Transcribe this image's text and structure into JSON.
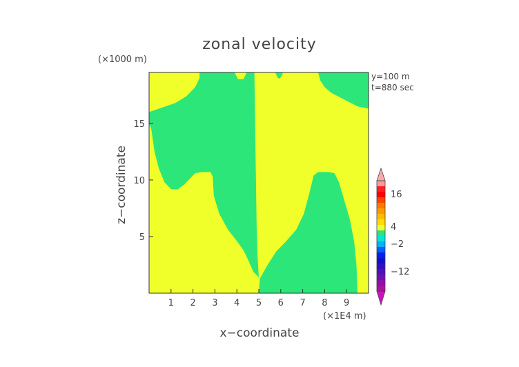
{
  "chart_data": {
    "type": "heatmap",
    "title": "zonal velocity",
    "xlabel": "x−coordinate",
    "ylabel": "z−coordinate",
    "x_unit": "(×1E4 m)",
    "y_unit": "(×1000 m)",
    "annotations": [
      "y=100 m",
      "t=880 sec"
    ],
    "xlim": [
      0,
      10
    ],
    "ylim": [
      0,
      19.5
    ],
    "x_ticks": [
      1,
      2,
      3,
      4,
      5,
      6,
      7,
      8,
      9
    ],
    "y_ticks": [
      5,
      10,
      15
    ],
    "colors": {
      "positive": "#f0ff2a",
      "negative": "#2ce67a"
    },
    "regions": [
      {
        "name": "left-upper-negative",
        "sign": "negative",
        "polygon": [
          [
            0.0,
            16.0
          ],
          [
            0.6,
            16.4
          ],
          [
            1.2,
            16.8
          ],
          [
            1.7,
            17.4
          ],
          [
            2.1,
            18.2
          ],
          [
            2.3,
            19.0
          ],
          [
            2.3,
            19.5
          ],
          [
            3.9,
            19.5
          ],
          [
            4.05,
            18.9
          ],
          [
            4.3,
            18.9
          ],
          [
            4.45,
            19.5
          ],
          [
            4.8,
            19.5
          ],
          [
            4.9,
            6.0
          ],
          [
            4.95,
            3.0
          ],
          [
            5.0,
            1.4
          ],
          [
            4.75,
            1.9
          ],
          [
            4.5,
            3.0
          ],
          [
            4.3,
            3.8
          ],
          [
            4.0,
            4.6
          ],
          [
            3.6,
            5.6
          ],
          [
            3.2,
            7.0
          ],
          [
            2.95,
            8.6
          ],
          [
            2.9,
            10.3
          ],
          [
            2.8,
            10.7
          ],
          [
            2.4,
            10.7
          ],
          [
            2.1,
            10.6
          ],
          [
            1.9,
            10.2
          ],
          [
            1.6,
            9.6
          ],
          [
            1.3,
            9.15
          ],
          [
            1.0,
            9.2
          ],
          [
            0.7,
            9.8
          ],
          [
            0.45,
            11.0
          ],
          [
            0.25,
            12.5
          ],
          [
            0.1,
            14.5
          ],
          [
            0.0,
            15.0
          ]
        ]
      },
      {
        "name": "right-upper-negative",
        "sign": "negative",
        "polygon": [
          [
            7.7,
            19.5
          ],
          [
            7.8,
            18.8
          ],
          [
            8.0,
            18.2
          ],
          [
            8.3,
            17.7
          ],
          [
            8.7,
            17.3
          ],
          [
            9.1,
            16.9
          ],
          [
            9.5,
            16.5
          ],
          [
            10.0,
            16.3
          ],
          [
            10.0,
            19.5
          ]
        ]
      },
      {
        "name": "right-lower-negative",
        "sign": "negative",
        "polygon": [
          [
            5.05,
            1.3
          ],
          [
            5.4,
            2.5
          ],
          [
            5.8,
            3.7
          ],
          [
            6.2,
            4.5
          ],
          [
            6.7,
            5.6
          ],
          [
            7.05,
            7.0
          ],
          [
            7.3,
            8.8
          ],
          [
            7.5,
            10.4
          ],
          [
            7.7,
            10.7
          ],
          [
            8.2,
            10.7
          ],
          [
            8.45,
            10.6
          ],
          [
            8.65,
            9.8
          ],
          [
            8.85,
            8.5
          ],
          [
            9.15,
            6.5
          ],
          [
            9.35,
            4.5
          ],
          [
            9.45,
            2.5
          ],
          [
            9.5,
            0.0
          ],
          [
            5.0,
            0.0
          ]
        ]
      },
      {
        "name": "notch-near-6",
        "sign": "negative",
        "polygon": [
          [
            5.75,
            19.5
          ],
          [
            5.85,
            19.05
          ],
          [
            5.95,
            18.95
          ],
          [
            6.05,
            19.2
          ],
          [
            6.1,
            19.5
          ]
        ]
      }
    ],
    "colorbar": {
      "labels": [
        16,
        4,
        -2,
        -12
      ],
      "bands": [
        "#ff9999",
        "#ff2020",
        "#ff0000",
        "#ff4400",
        "#ff7a00",
        "#ff9900",
        "#ffbb00",
        "#ffdd00",
        "#f0ff2a",
        "#2ce67a",
        "#00e8d0",
        "#00b0ff",
        "#0060ff",
        "#0020ee",
        "#1010cc",
        "#3010c0",
        "#5010b8",
        "#7010b0",
        "#9010a8",
        "#b010a0"
      ],
      "top_cap": "#ffaaaa",
      "bottom_cap": "#d010c0"
    }
  }
}
